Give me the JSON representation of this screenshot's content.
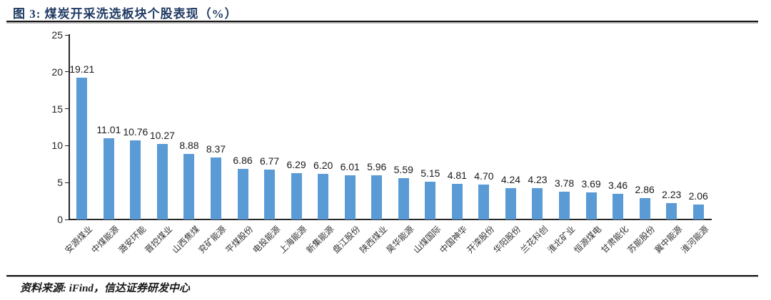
{
  "figure": {
    "title": "图 3: 煤炭开采洗选板块个股表现（%）",
    "source": "资料来源: iFind，信达证券研发中心"
  },
  "colors": {
    "title": "#1F3A63",
    "bar": "#5B9BD5",
    "axis": "#262626",
    "value_label": "#1a1a1a",
    "category_label": "#333333"
  },
  "chart_data": {
    "type": "bar",
    "title": "煤炭开采洗选板块个股表现（%）",
    "categories": [
      "安源煤业",
      "中煤能源",
      "潞安环能",
      "晋控煤业",
      "山西焦煤",
      "兖矿能源",
      "平煤股份",
      "电投能源",
      "上海能源",
      "新集能源",
      "盘江股份",
      "陕西煤业",
      "昊华能源",
      "山煤国际",
      "中国神华",
      "开滦股份",
      "华阳股份",
      "兰花科创",
      "淮北矿业",
      "恒源煤电",
      "甘肃能化",
      "苏能股份",
      "冀中能源",
      "淮河能源"
    ],
    "values": [
      19.21,
      11.01,
      10.76,
      10.27,
      8.88,
      8.37,
      6.86,
      6.77,
      6.29,
      6.2,
      6.01,
      5.96,
      5.59,
      5.15,
      4.81,
      4.7,
      4.24,
      4.23,
      3.78,
      3.69,
      3.46,
      2.86,
      2.23,
      2.06
    ],
    "value_labels": [
      "19.21",
      "11.01",
      "10.76",
      "10.27",
      "8.88",
      "8.37",
      "6.86",
      "6.77",
      "6.29",
      "6.20",
      "6.01",
      "5.96",
      "5.59",
      "5.15",
      "4.81",
      "4.70",
      "4.24",
      "4.23",
      "3.78",
      "3.69",
      "3.46",
      "2.86",
      "2.23",
      "2.06"
    ],
    "xlabel": "",
    "ylabel": "",
    "ylim": [
      0,
      25
    ],
    "yticks": [
      0,
      5,
      10,
      15,
      20,
      25
    ],
    "grid": false,
    "legend": "none",
    "bar_color": "#5B9BD5",
    "value_labels_shown": true,
    "category_label_rotation_deg": -45
  }
}
